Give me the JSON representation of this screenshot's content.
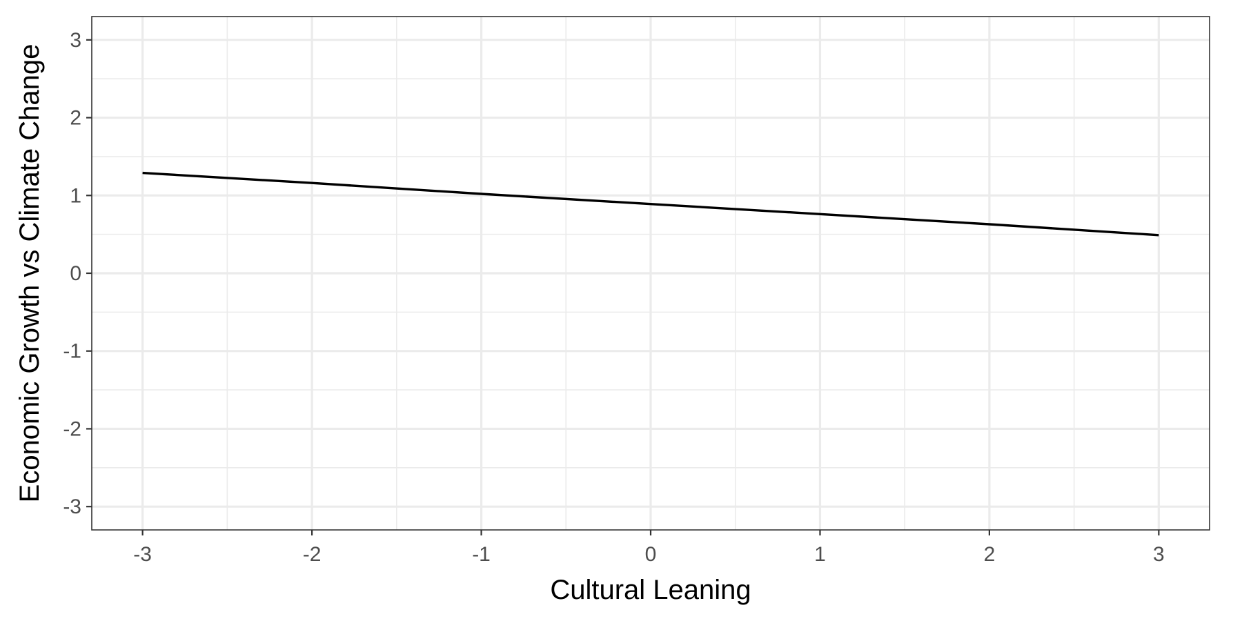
{
  "chart_data": {
    "type": "line",
    "title": "",
    "xlabel": "Cultural Leaning",
    "ylabel": "Economic Growth vs Climate Change",
    "xlim": [
      -3.3,
      3.3
    ],
    "ylim": [
      -3.3,
      3.3
    ],
    "x_ticks": [
      -3,
      -2,
      -1,
      0,
      1,
      2,
      3
    ],
    "y_ticks": [
      -3,
      -2,
      -1,
      0,
      1,
      2,
      3
    ],
    "x_tick_labels": [
      "-3",
      "-2",
      "-1",
      "0",
      "1",
      "2",
      "3"
    ],
    "y_tick_labels": [
      "-3",
      "-2",
      "-1",
      "0",
      "1",
      "2",
      "3"
    ],
    "grid": true,
    "legend": "none",
    "series": [
      {
        "x": [
          -3,
          -2,
          -1,
          0,
          1,
          2,
          3
        ],
        "y": [
          1.29,
          1.16,
          1.02,
          0.89,
          0.76,
          0.63,
          0.49
        ],
        "color": "#000000"
      }
    ]
  }
}
